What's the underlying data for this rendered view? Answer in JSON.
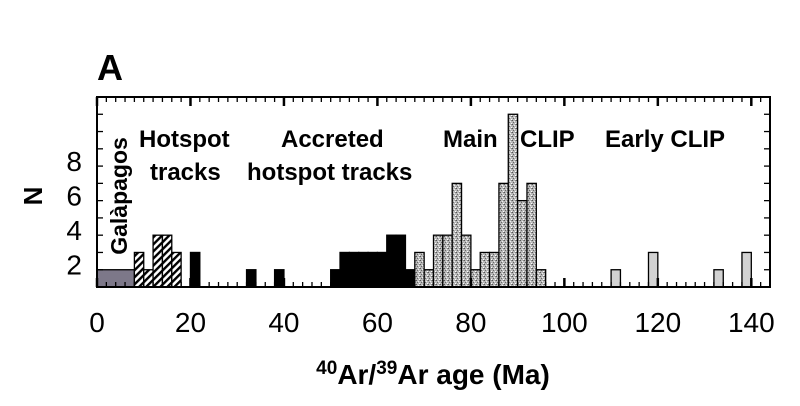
{
  "chart_data": {
    "type": "bar",
    "panel_label": "A",
    "xlabel": {
      "pre1": "40",
      "mid1": "Ar/",
      "pre2": "39",
      "mid2": "Ar age (Ma)"
    },
    "ylabel": "N",
    "xlim": [
      0,
      144
    ],
    "ylim": [
      0,
      11
    ],
    "xticks": [
      0,
      20,
      40,
      60,
      80,
      100,
      120,
      140
    ],
    "yticks": [
      2,
      4,
      6,
      8
    ],
    "bin_width_ma": 2,
    "annotations": {
      "galapagos": "Galàpagos",
      "hotspot1": "Hotspot",
      "hotspot2": "tracks",
      "accreted1": "Accreted",
      "accreted2": "hotspot tracks",
      "main1": "Main",
      "main2": "CLIP",
      "early": "Early CLIP"
    },
    "series": [
      {
        "name": "Galapagos",
        "fill": "#7d7889",
        "bars": [
          {
            "x0": 0,
            "x1": 8,
            "n": 1
          }
        ]
      },
      {
        "name": "Hotspot tracks",
        "fill": "hatch",
        "bars": [
          {
            "x0": 8,
            "x1": 10,
            "n": 2
          },
          {
            "x0": 10,
            "x1": 12,
            "n": 1
          },
          {
            "x0": 12,
            "x1": 14,
            "n": 3
          },
          {
            "x0": 14,
            "x1": 16,
            "n": 3
          },
          {
            "x0": 16,
            "x1": 18,
            "n": 2
          }
        ]
      },
      {
        "name": "Accreted hotspot tracks",
        "fill": "#000000",
        "bars": [
          {
            "x0": 20,
            "x1": 22,
            "n": 2
          },
          {
            "x0": 32,
            "x1": 34,
            "n": 1
          },
          {
            "x0": 38,
            "x1": 40,
            "n": 1
          },
          {
            "x0": 50,
            "x1": 52,
            "n": 1
          },
          {
            "x0": 52,
            "x1": 54,
            "n": 2
          },
          {
            "x0": 54,
            "x1": 56,
            "n": 2
          },
          {
            "x0": 56,
            "x1": 58,
            "n": 2
          },
          {
            "x0": 58,
            "x1": 60,
            "n": 2
          },
          {
            "x0": 60,
            "x1": 62,
            "n": 2
          },
          {
            "x0": 62,
            "x1": 64,
            "n": 3
          },
          {
            "x0": 64,
            "x1": 66,
            "n": 3
          },
          {
            "x0": 66,
            "x1": 68,
            "n": 1
          }
        ]
      },
      {
        "name": "Main CLIP",
        "fill": "stipple",
        "bars": [
          {
            "x0": 68,
            "x1": 70,
            "n": 2
          },
          {
            "x0": 70,
            "x1": 72,
            "n": 1
          },
          {
            "x0": 72,
            "x1": 74,
            "n": 3
          },
          {
            "x0": 74,
            "x1": 76,
            "n": 3
          },
          {
            "x0": 76,
            "x1": 78,
            "n": 6
          },
          {
            "x0": 78,
            "x1": 80,
            "n": 3
          },
          {
            "x0": 80,
            "x1": 82,
            "n": 1
          },
          {
            "x0": 82,
            "x1": 84,
            "n": 2
          },
          {
            "x0": 84,
            "x1": 86,
            "n": 2
          },
          {
            "x0": 86,
            "x1": 88,
            "n": 6
          },
          {
            "x0": 88,
            "x1": 90,
            "n": 10
          },
          {
            "x0": 90,
            "x1": 92,
            "n": 5
          },
          {
            "x0": 92,
            "x1": 94,
            "n": 6
          },
          {
            "x0": 94,
            "x1": 96,
            "n": 1
          }
        ]
      },
      {
        "name": "Early CLIP",
        "fill": "#d2d2d2",
        "bars": [
          {
            "x0": 110,
            "x1": 112,
            "n": 1
          },
          {
            "x0": 118,
            "x1": 120,
            "n": 2
          },
          {
            "x0": 132,
            "x1": 134,
            "n": 1
          },
          {
            "x0": 138,
            "x1": 140,
            "n": 2
          }
        ]
      }
    ]
  }
}
